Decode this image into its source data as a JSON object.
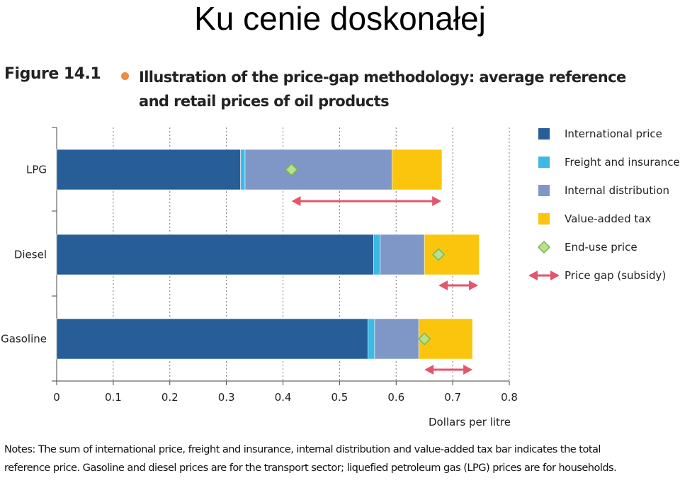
{
  "slide": {
    "title": "Ku cenie doskonałej"
  },
  "figure": {
    "label": "Figure 14.1",
    "caption_line1": "Illustration of the price-gap methodology: average reference",
    "caption_line2": "and retail prices of oil products"
  },
  "colors": {
    "international_price": "#275e98",
    "freight_and_insurance": "#3db9e6",
    "internal_distribution": "#7f97c6",
    "value_added_tax": "#fac50c",
    "end_use_marker_fill": "#b9e08a",
    "end_use_marker_stroke": "#79b850",
    "price_gap_arrow": "#e4566c",
    "accent_dot": "#f08a3c"
  },
  "chart_data": {
    "type": "bar",
    "orientation": "horizontal",
    "stacked": true,
    "categories": [
      "LPG",
      "Diesel",
      "Gasoline"
    ],
    "series": [
      {
        "name": "International price",
        "values": [
          0.325,
          0.56,
          0.55
        ]
      },
      {
        "name": "Freight and insurance",
        "values": [
          0.008,
          0.012,
          0.012
        ]
      },
      {
        "name": "Internal distribution",
        "values": [
          0.26,
          0.078,
          0.078
        ]
      },
      {
        "name": "Value-added tax",
        "values": [
          0.088,
          0.097,
          0.095
        ]
      }
    ],
    "end_use_price": {
      "name": "End-use price",
      "values": [
        0.415,
        0.675,
        0.65
      ]
    },
    "price_gap": {
      "name": "Price gap (subsidy)",
      "ranges": [
        [
          0.415,
          0.68
        ],
        [
          0.675,
          0.745
        ],
        [
          0.65,
          0.735
        ]
      ]
    },
    "xlabel": "Dollars per litre",
    "ylabel": "",
    "xlim": [
      0,
      0.8
    ],
    "xticks": [
      "0",
      "0.1",
      "0.2",
      "0.3",
      "0.4",
      "0.5",
      "0.6",
      "0.7",
      "0.8"
    ],
    "grid": "vertical dotted",
    "legend_position": "right"
  },
  "notes": {
    "line1": "Notes: The sum of international price, freight and insurance, internal distribution and value-added tax bar indicates the total",
    "line2": "reference price. Gasoline and diesel prices are for the transport sector; liquefied petroleum gas (LPG) prices are for households."
  }
}
